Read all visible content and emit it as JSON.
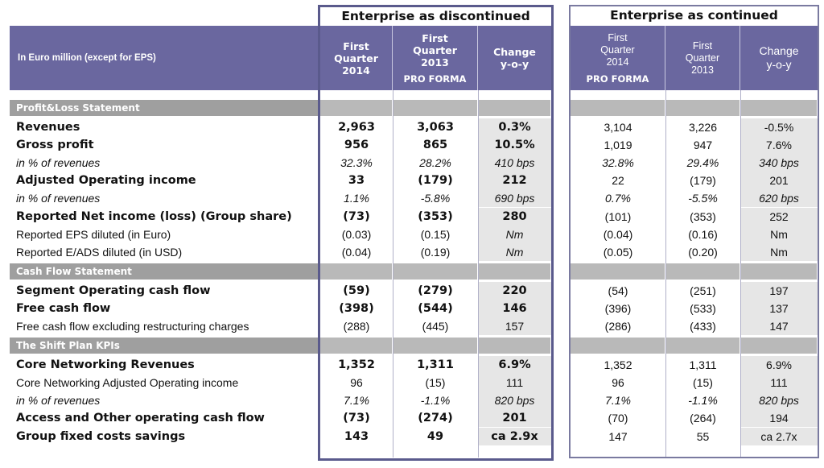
{
  "groups": {
    "discontinued": "Enterprise as discontinued",
    "continued": "Enterprise as continued"
  },
  "header": {
    "label": "In Euro million (except for EPS)",
    "disc": {
      "q1_2014": [
        "First",
        "Quarter",
        "2014"
      ],
      "q1_2013": [
        "First",
        "Quarter",
        "2013"
      ],
      "q1_2013_sub": "PRO FORMA",
      "change": [
        "Change",
        "y-o-y"
      ]
    },
    "cont": {
      "q1_2014": [
        "First",
        "Quarter",
        "2014"
      ],
      "q1_2014_sub": "PRO FORMA",
      "q1_2013": [
        "First",
        "Quarter",
        "2013"
      ],
      "change": [
        "Change",
        "y-o-y"
      ]
    }
  },
  "sections": [
    {
      "title": "Profit&Loss Statement",
      "rows": [
        {
          "label": "Revenues",
          "style": "bold",
          "disc": [
            "2,963",
            "3,063",
            "0.3%"
          ],
          "cont": [
            "3,104",
            "3,226",
            "-0.5%"
          ]
        },
        {
          "label": "Gross profit",
          "style": "bold",
          "disc": [
            "956",
            "865",
            "10.5%"
          ],
          "cont": [
            "1,019",
            "947",
            "7.6%"
          ]
        },
        {
          "label": "in % of revenues",
          "style": "ital",
          "disc": [
            "32.3%",
            "28.2%",
            "410 bps"
          ],
          "cont": [
            "32.8%",
            "29.4%",
            "340 bps"
          ]
        },
        {
          "label": "Adjusted Operating income",
          "style": "bold",
          "disc": [
            "33",
            "(179)",
            "212"
          ],
          "cont": [
            "22",
            "(179)",
            "201"
          ]
        },
        {
          "label": "in % of revenues",
          "style": "ital",
          "disc": [
            "1.1%",
            "-5.8%",
            "690 bps"
          ],
          "cont": [
            "0.7%",
            "-5.5%",
            "620 bps"
          ]
        },
        {
          "label": "Reported Net income (loss) (Group share)",
          "style": "bold",
          "disc": [
            "(73)",
            "(353)",
            "280"
          ],
          "cont": [
            "(101)",
            "(353)",
            "252"
          ]
        },
        {
          "label": "Reported EPS diluted (in Euro)",
          "style": "reg",
          "disc": [
            "(0.03)",
            "(0.15)",
            "Nm"
          ],
          "cont": [
            "(0.04)",
            "(0.16)",
            "Nm"
          ]
        },
        {
          "label": "Reported E/ADS diluted (in USD)",
          "style": "reg",
          "disc": [
            "(0.04)",
            "(0.19)",
            "Nm"
          ],
          "cont": [
            "(0.05)",
            "(0.20)",
            "Nm"
          ]
        }
      ]
    },
    {
      "title": "Cash Flow Statement",
      "rows": [
        {
          "label": "Segment Operating cash flow",
          "style": "bold",
          "disc": [
            "(59)",
            "(279)",
            "220"
          ],
          "cont": [
            "(54)",
            "(251)",
            "197"
          ]
        },
        {
          "label": "Free cash flow",
          "style": "bold",
          "disc": [
            "(398)",
            "(544)",
            "146"
          ],
          "cont": [
            "(396)",
            "(533)",
            "137"
          ]
        },
        {
          "label": "Free cash flow excluding restructuring charges",
          "style": "reg",
          "disc": [
            "(288)",
            "(445)",
            "157"
          ],
          "cont": [
            "(286)",
            "(433)",
            "147"
          ]
        }
      ]
    },
    {
      "title": "The Shift Plan KPIs",
      "rows": [
        {
          "label": "Core Networking Revenues",
          "style": "bold",
          "disc": [
            "1,352",
            "1,311",
            "6.9%"
          ],
          "cont": [
            "1,352",
            "1,311",
            "6.9%"
          ]
        },
        {
          "label": "Core Networking Adjusted Operating income",
          "style": "reg",
          "disc": [
            "96",
            "(15)",
            "111"
          ],
          "cont": [
            "96",
            "(15)",
            "111"
          ]
        },
        {
          "label": "in % of revenues",
          "style": "ital",
          "disc": [
            "7.1%",
            "-1.1%",
            "820 bps"
          ],
          "cont": [
            "7.1%",
            "-1.1%",
            "820 bps"
          ]
        },
        {
          "label": "Access and Other operating cash flow",
          "style": "bold",
          "disc": [
            "(73)",
            "(274)",
            "201"
          ],
          "cont": [
            "(70)",
            "(264)",
            "194"
          ]
        },
        {
          "label": "Group fixed costs savings",
          "style": "bold",
          "disc": [
            "143",
            "49",
            "ca 2.9x"
          ],
          "cont": [
            "147",
            "55",
            "ca 2.7x"
          ]
        }
      ]
    }
  ]
}
